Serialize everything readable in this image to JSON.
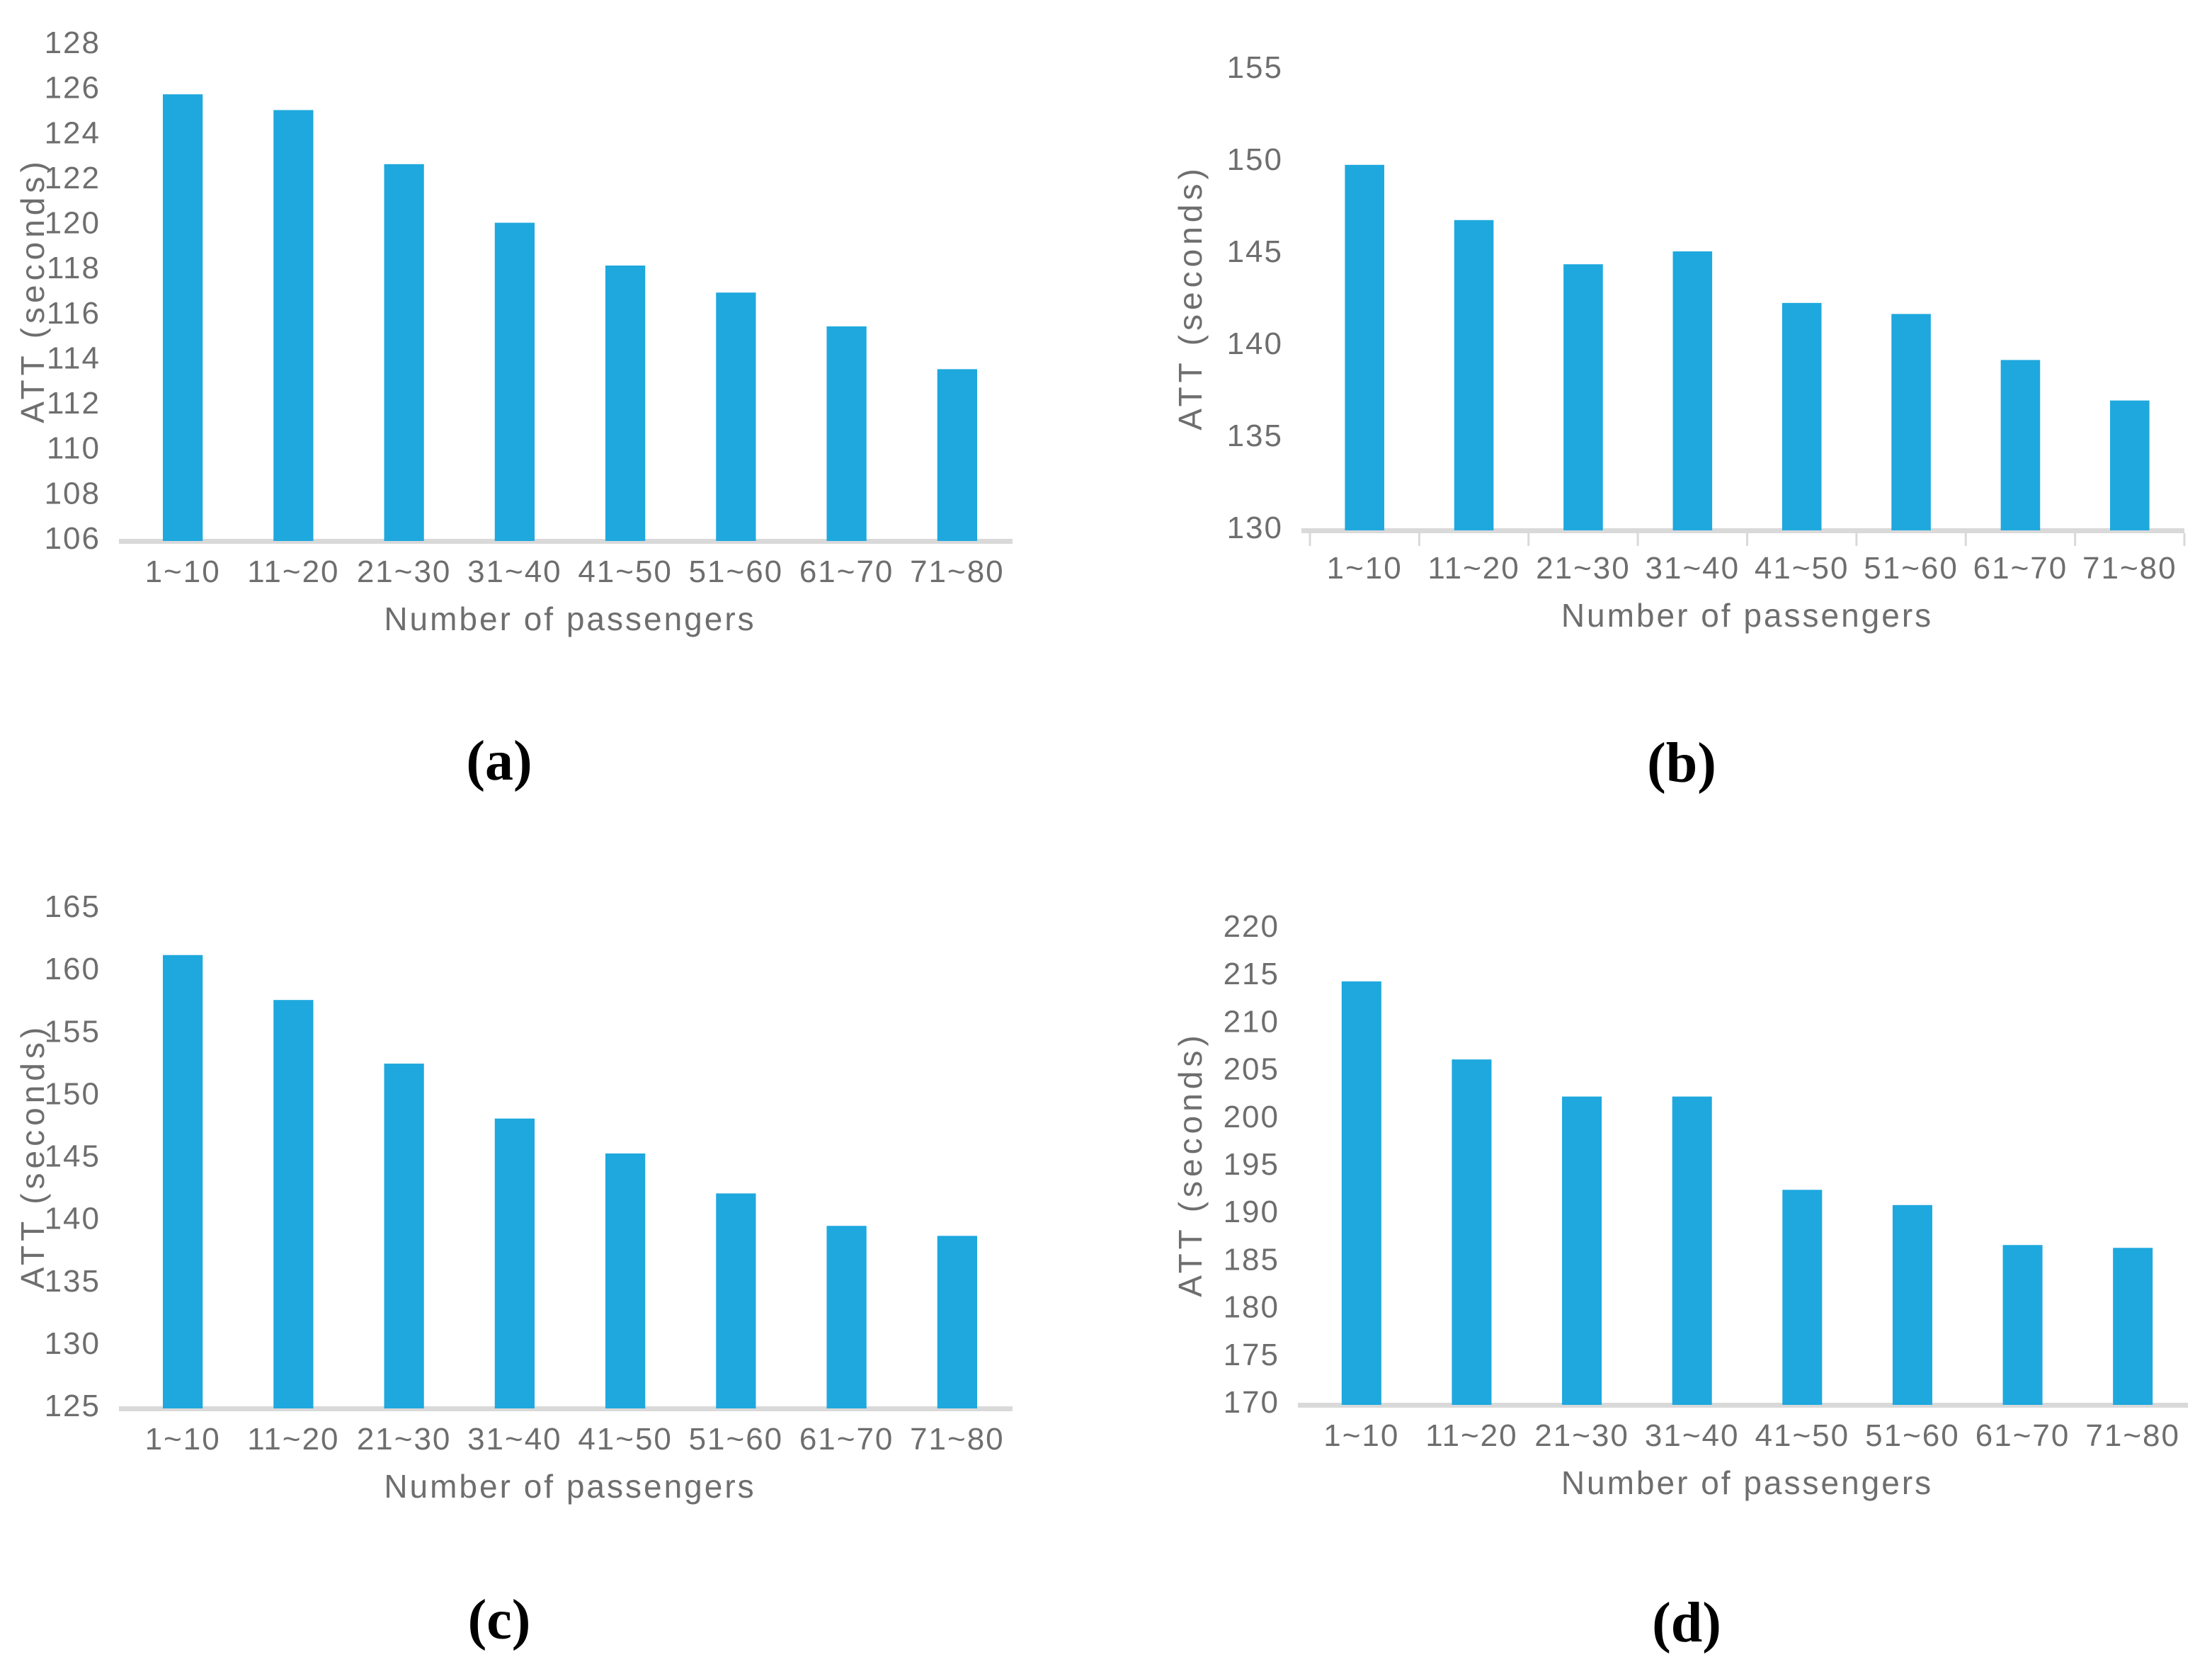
{
  "page": {
    "background": "#ffffff"
  },
  "colors": {
    "bar": "#1EA8DE",
    "axis_line": "#D9D9D9",
    "label_text": "#6E6E6E",
    "caption_text": "#000000"
  },
  "chart_data": [
    {
      "id": "a",
      "type": "bar",
      "caption": "(a)",
      "title": "",
      "xlabel": "Number of passengers",
      "ylabel": "ATT (seconds)",
      "categories": [
        "1~10",
        "11~20",
        "21~30",
        "31~40",
        "41~50",
        "51~60",
        "61~70",
        "71~80"
      ],
      "values": [
        125.7,
        125.0,
        122.6,
        120.0,
        118.1,
        116.9,
        115.4,
        113.5
      ],
      "ylim": [
        106,
        128
      ],
      "ytick_step": 2,
      "y_ticks": [
        "106",
        "108",
        "110",
        "112",
        "114",
        "116",
        "118",
        "120",
        "122",
        "124",
        "126",
        "128"
      ],
      "x_axis_tick_marks": false,
      "grid": false,
      "legend": false
    },
    {
      "id": "b",
      "type": "bar",
      "caption": "(b)",
      "title": "",
      "xlabel": "Number of passengers",
      "ylabel": "ATT (seconds)",
      "categories": [
        "1~10",
        "11~20",
        "21~30",
        "31~40",
        "41~50",
        "51~60",
        "61~70",
        "71~80"
      ],
      "values": [
        149.7,
        146.7,
        144.3,
        145.0,
        142.2,
        141.6,
        139.1,
        136.9
      ],
      "ylim": [
        130,
        155
      ],
      "ytick_step": 5,
      "y_ticks": [
        "130",
        "135",
        "140",
        "145",
        "150",
        "155"
      ],
      "x_axis_tick_marks": true,
      "grid": false,
      "legend": false
    },
    {
      "id": "c",
      "type": "bar",
      "caption": "(c)",
      "title": "",
      "xlabel": "Number of passengers",
      "ylabel": "ATT (seconds)",
      "categories": [
        "1~10",
        "11~20",
        "21~30",
        "31~40",
        "41~50",
        "51~60",
        "61~70",
        "71~80"
      ],
      "values": [
        161.1,
        157.5,
        152.4,
        148.0,
        145.2,
        142.0,
        139.4,
        138.6
      ],
      "ylim": [
        125,
        165
      ],
      "ytick_step": 5,
      "y_ticks": [
        "125",
        "130",
        "135",
        "140",
        "145",
        "150",
        "155",
        "160",
        "165"
      ],
      "x_axis_tick_marks": false,
      "grid": false,
      "legend": false
    },
    {
      "id": "d",
      "type": "bar",
      "caption": "(d)",
      "title": "",
      "xlabel": "Number of passengers",
      "ylabel": "ATT (seconds)",
      "categories": [
        "1~10",
        "11~20",
        "21~30",
        "31~40",
        "41~50",
        "51~60",
        "61~70",
        "71~80"
      ],
      "values": [
        214.2,
        206.0,
        202.1,
        202.1,
        192.3,
        190.7,
        186.5,
        186.2
      ],
      "ylim": [
        170,
        220
      ],
      "ytick_step": 5,
      "y_ticks": [
        "170",
        "175",
        "180",
        "185",
        "190",
        "195",
        "200",
        "205",
        "210",
        "215",
        "220"
      ],
      "x_axis_tick_marks": false,
      "grid": false,
      "legend": false
    }
  ]
}
